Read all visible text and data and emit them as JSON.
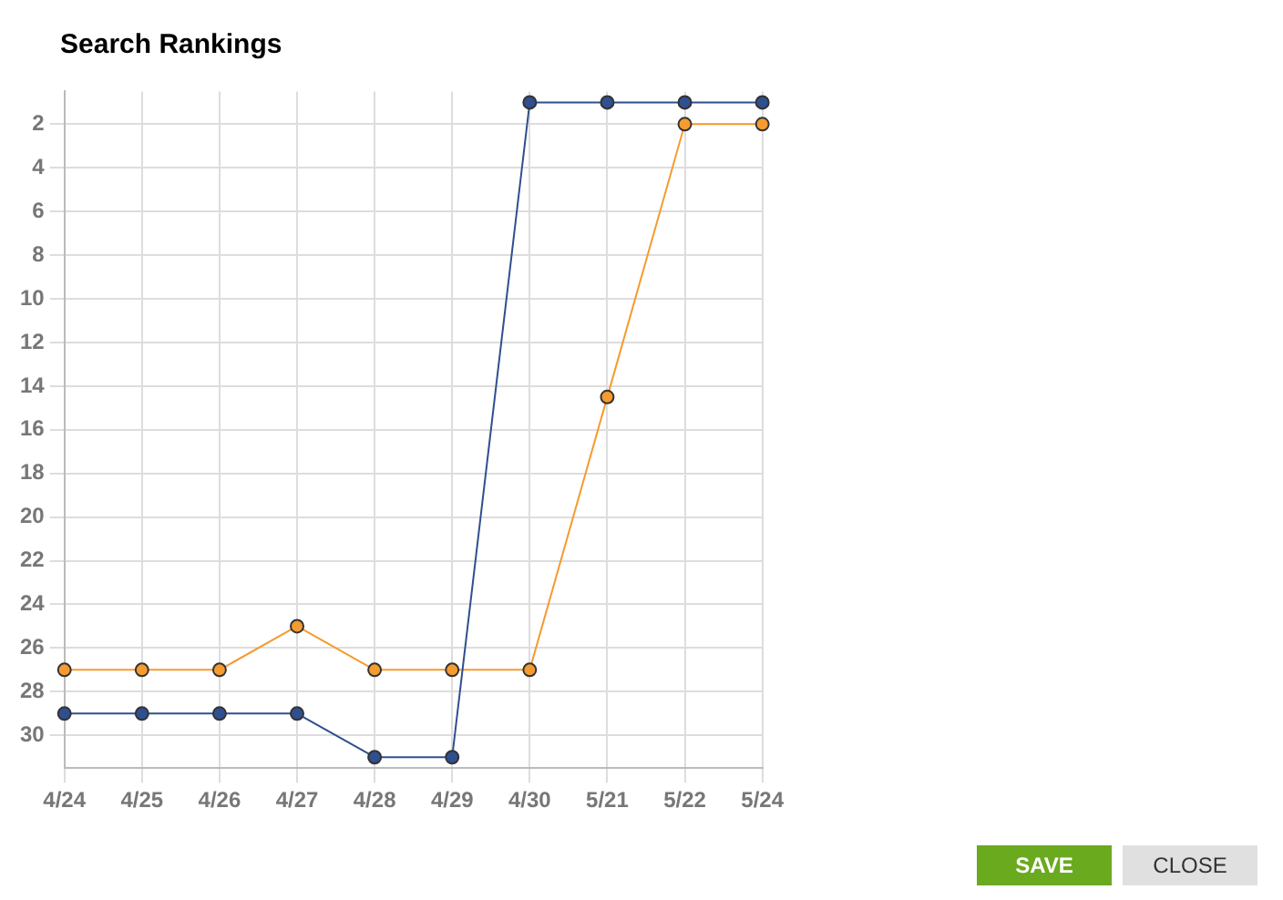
{
  "chart_data": {
    "type": "line",
    "title": "Search Rankings",
    "categories": [
      "4/24",
      "4/25",
      "4/26",
      "4/27",
      "4/28",
      "4/29",
      "4/30",
      "5/21",
      "5/22",
      "5/24"
    ],
    "series": [
      {
        "color": "#2f4f8f",
        "values": [
          29,
          29,
          29,
          29,
          31,
          31,
          1,
          1,
          1,
          1
        ]
      },
      {
        "color": "#f59b2f",
        "values": [
          27,
          27,
          27,
          25,
          27,
          27,
          27,
          14.5,
          2,
          2
        ]
      }
    ],
    "ylim": [
      31.5,
      0.5
    ],
    "yticks": [
      2,
      4,
      6,
      8,
      10,
      12,
      14,
      16,
      18,
      20,
      22,
      24,
      26,
      28,
      30
    ],
    "grid": true,
    "legend": false,
    "marker": "circle",
    "line_style": "solid",
    "annotations": [
      "SAVE",
      "CLOSE"
    ]
  }
}
